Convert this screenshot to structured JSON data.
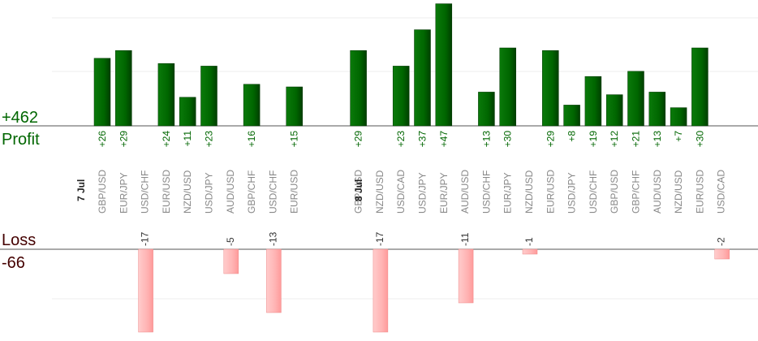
{
  "chart_data": {
    "type": "bar",
    "profit": {
      "total": "+462",
      "label": "Profit",
      "color": "#006600"
    },
    "loss": {
      "total": "-66",
      "label": "Loss",
      "color": "#440000"
    },
    "dates": [
      {
        "label": "7 Jul",
        "index": 0
      },
      {
        "label": "8 Jul",
        "index": 13
      }
    ],
    "categories": [
      "GBP/USD",
      "EUR/JPY",
      "USD/CHF",
      "EUR/USD",
      "NZD/USD",
      "USD/JPY",
      "AUD/USD",
      "GBP/CHF",
      "USD/CHF",
      "EUR/USD",
      "",
      "",
      "GBP/USD",
      "NZD/USD",
      "USD/CAD",
      "USD/JPY",
      "EUR/JPY",
      "AUD/USD",
      "USD/CHF",
      "EUR/JPY",
      "NZD/USD",
      "EUR/USD",
      "USD/JPY",
      "USD/CHF",
      "GBP/USD",
      "GBP/CHF",
      "AUD/USD",
      "NZD/USD",
      "EUR/USD",
      "USD/CAD"
    ],
    "profits": [
      26,
      29,
      null,
      24,
      11,
      23,
      null,
      16,
      null,
      15,
      null,
      null,
      29,
      null,
      23,
      37,
      47,
      null,
      13,
      30,
      null,
      29,
      8,
      19,
      12,
      21,
      13,
      7,
      30,
      null
    ],
    "losses": [
      null,
      null,
      -17,
      null,
      null,
      null,
      -5,
      null,
      -13,
      null,
      null,
      null,
      null,
      -17,
      null,
      null,
      null,
      -11,
      null,
      null,
      -1,
      null,
      null,
      null,
      null,
      null,
      null,
      null,
      null,
      -2
    ],
    "profit_labels": [
      "+26",
      "+29",
      "",
      "+24",
      "+11",
      "+23",
      "",
      "+16",
      "",
      "+15",
      "",
      "",
      "+29",
      "",
      "+23",
      "+37",
      "+47",
      "",
      "+13",
      "+30",
      "",
      "+29",
      "+8",
      "+19",
      "+12",
      "+21",
      "+13",
      "+7",
      "+30",
      ""
    ],
    "loss_labels": [
      "",
      "",
      "-17",
      "",
      "",
      "",
      "-5",
      "",
      "-13",
      "",
      "",
      "",
      "",
      "-17",
      "",
      "",
      "",
      "-11",
      "",
      "",
      "-1",
      "",
      "",
      "",
      "",
      "",
      "",
      "",
      "",
      "-2"
    ],
    "colors": {
      "profit_bar": "#006600",
      "loss_bar": "#ffb3b3",
      "profit_text": "#006600",
      "category_text": "#888888",
      "grid": "#eeeeee"
    }
  }
}
